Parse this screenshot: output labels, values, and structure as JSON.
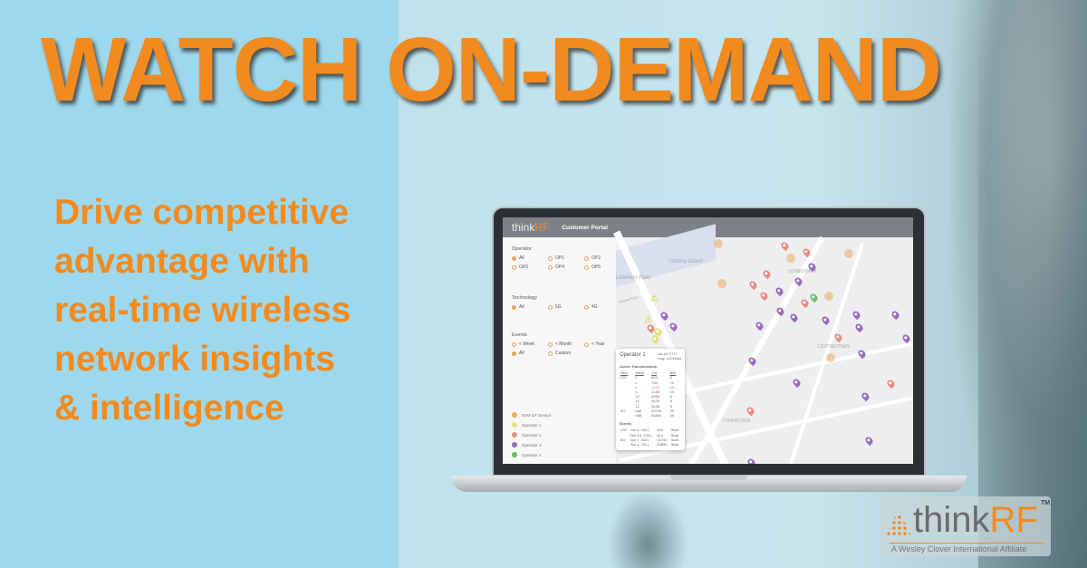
{
  "headline": "WATCH ON-DEMAND",
  "subheadline": "Drive competitive\nadvantage with\nreal-time wireless\nnetwork insights\n& intelligence",
  "portal": {
    "logo_think": "think",
    "logo_rf": "RF",
    "title": "Customer Portal",
    "filters": [
      {
        "label": "Operator",
        "options": [
          {
            "label": "All",
            "selected": true
          },
          {
            "label": "OP1"
          },
          {
            "label": "OP2"
          },
          {
            "label": "OP3"
          },
          {
            "label": "OP4"
          },
          {
            "label": "OP5"
          }
        ]
      },
      {
        "label": "Technology",
        "options": [
          {
            "label": "All",
            "selected": true
          },
          {
            "label": "5G"
          },
          {
            "label": "4G"
          }
        ]
      },
      {
        "label": "Events",
        "options": [
          {
            "label": "< Week"
          },
          {
            "label": "< Month"
          },
          {
            "label": "< Year"
          },
          {
            "label": "All",
            "selected": true
          },
          {
            "label": "Custom"
          }
        ]
      }
    ],
    "legend": [
      {
        "label": "5XM IoT Sensor",
        "color": "#f0a864"
      },
      {
        "label": "Operator 1",
        "color": "#e2e27a"
      },
      {
        "label": "Operator 2",
        "color": "#e98b7f"
      },
      {
        "label": "Operator 3",
        "color": "#9a6bbd"
      },
      {
        "label": "Operator 4",
        "color": "#6cbf5f"
      }
    ],
    "map_labels": [
      "Victoria Island",
      "Lebreton Flats",
      "DOWNTOWN",
      "CENTRETOWN",
      "CHINATOWN",
      "Ottawa River"
    ],
    "popup": {
      "title": "Operator 1",
      "lat": "Lat: 45.27717",
      "long": "Long: 123.33664",
      "section1": "Active Transmissions",
      "headers": [
        "Tech",
        "Band",
        "CN",
        "BW"
      ],
      "rows": [
        [
          "LTE",
          "2",
          "620",
          "5"
        ],
        [
          "",
          "2",
          "730",
          "10"
        ],
        [
          "",
          "4",
          "2013",
          "15"
        ],
        [
          "",
          "4",
          "2135",
          "10"
        ],
        [
          "",
          "12",
          "5050",
          "5"
        ],
        [
          "",
          "12",
          "5420",
          "5"
        ],
        [
          "",
          "12",
          "5135",
          "5"
        ],
        [
          "5G",
          "n66",
          "63750",
          "20"
        ],
        [
          "",
          "n66",
          "64850",
          "20"
        ]
      ],
      "section2": "Events",
      "events": [
        [
          "LTE",
          "Jun 3, 2021",
          "620",
          "Start"
        ],
        [
          "",
          "Feb 10, 2021",
          "613",
          "Stop"
        ],
        [
          "5G",
          "Jun 1, 2021",
          "63750",
          "Start"
        ],
        [
          "",
          "Jun 1, 2021",
          "64850",
          "Start"
        ]
      ]
    }
  },
  "brand": {
    "think": "think",
    "rf": "RF",
    "tm": "TM",
    "affiliate": "A Wesley Clover International Affiliate"
  },
  "colors": {
    "orange": "#f28a1e",
    "left_bg": "#9ed8ec"
  }
}
